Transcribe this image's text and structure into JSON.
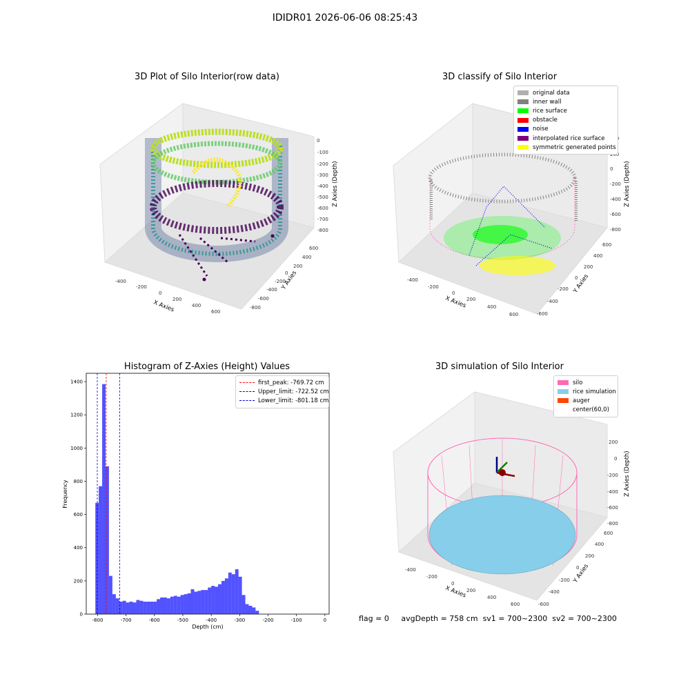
{
  "suptitle": "IDIDR01 2026-06-06 08:25:43",
  "panels": {
    "raw": {
      "title": "3D Plot of Silo Interior(row data)",
      "xlabel": "X Axies",
      "ylabel": "Y Axies",
      "zlabel": "Z Axies (Depth)",
      "xticks": [
        "-400",
        "-200",
        "0",
        "200",
        "400",
        "600"
      ],
      "yticks": [
        "600",
        "400",
        "200",
        "0",
        "-200",
        "-400",
        "-600",
        "-800"
      ],
      "zticks": [
        "0",
        "-100",
        "-200",
        "-300",
        "-400",
        "-500",
        "-600",
        "-700",
        "-800"
      ]
    },
    "classify": {
      "title": "3D classify of Silo Interior",
      "xlabel": "X Axies",
      "ylabel": "Y Axies",
      "zlabel": "Z Axies (Depth)",
      "xticks": [
        "-400",
        "-200",
        "0",
        "200",
        "400",
        "600"
      ],
      "yticks": [
        "600",
        "400",
        "200",
        "0",
        "-200",
        "-400",
        "-600"
      ],
      "zticks": [
        "400",
        "200",
        "0",
        "-200",
        "-400",
        "-600",
        "-800"
      ],
      "legend": [
        {
          "label": "original data",
          "color": "#b0b0b0"
        },
        {
          "label": "inner wall",
          "color": "#808080"
        },
        {
          "label": "rice surface",
          "color": "#00ff00"
        },
        {
          "label": "obstacle",
          "color": "#ff0000"
        },
        {
          "label": "noise",
          "color": "#0000ff"
        },
        {
          "label": "interpolated rice surface",
          "color": "#800080"
        },
        {
          "label": "symmetric generated points",
          "color": "#ffff00"
        }
      ]
    },
    "histogram": {
      "title": "Histogram of Z-Axies (Height) Values",
      "xlabel": "Depth (cm)",
      "ylabel": "Frequency",
      "xticks": [
        "-800",
        "-700",
        "-600",
        "-500",
        "-400",
        "-300",
        "-200",
        "-100",
        "0"
      ],
      "yticks": [
        "0",
        "200",
        "400",
        "600",
        "800",
        "1000",
        "1200",
        "1400"
      ],
      "legend": [
        {
          "label": "first_peak: -769.72 cm",
          "color": "#ff0000"
        },
        {
          "label": "Upper_limit: -722.52 cm",
          "color": "#0000cc"
        },
        {
          "label": "Lower_limit: -801.18 cm",
          "color": "#0000cc"
        }
      ]
    },
    "simulation": {
      "title": "3D simulation of Silo Interior",
      "xlabel": "X Axies",
      "ylabel": "Y Axies",
      "zlabel": "Z Axies (Depth)",
      "xticks": [
        "-400",
        "-200",
        "0",
        "200",
        "400",
        "600"
      ],
      "yticks": [
        "600",
        "400",
        "200",
        "0",
        "-200",
        "-400",
        "-600"
      ],
      "zticks": [
        "200",
        "0",
        "-200",
        "-400",
        "-600",
        "-800"
      ],
      "legend": [
        {
          "label": "silo",
          "color": "#ff69b4"
        },
        {
          "label": "rice simulation",
          "color": "#87ceeb"
        },
        {
          "label": "auger",
          "color": "#ff4500"
        },
        {
          "label": "center(60,0)",
          "color": "#ffffff"
        }
      ]
    }
  },
  "footer": {
    "flag": "flag = 0",
    "avg_depth": "avgDepth = 758 cm",
    "sv1": "sv1 = 700~2300",
    "sv2": "sv2 = 700~2300"
  },
  "chart_data": [
    {
      "type": "scatter",
      "title": "3D Plot of Silo Interior(row data)",
      "xlabel": "X Axies",
      "ylabel": "Y Axies",
      "zlabel": "Z Axies (Depth)",
      "xlim": [
        -550,
        700
      ],
      "ylim": [
        -900,
        700
      ],
      "zlim": [
        -850,
        0
      ],
      "colormap": "viridis"
    },
    {
      "type": "scatter",
      "title": "3D classify of Silo Interior",
      "xlabel": "X Axies",
      "ylabel": "Y Axies",
      "zlabel": "Z Axies (Depth)",
      "xlim": [
        -550,
        700
      ],
      "ylim": [
        -650,
        650
      ],
      "zlim": [
        -850,
        400
      ],
      "series": [
        {
          "name": "original data"
        },
        {
          "name": "inner wall"
        },
        {
          "name": "rice surface"
        },
        {
          "name": "obstacle"
        },
        {
          "name": "noise"
        },
        {
          "name": "interpolated rice surface"
        },
        {
          "name": "symmetric generated points"
        }
      ]
    },
    {
      "type": "bar",
      "title": "Histogram of Z-Axies (Height) Values",
      "xlabel": "Depth (cm)",
      "ylabel": "Frequency",
      "xlim": [
        -840,
        15
      ],
      "ylim": [
        0,
        1450
      ],
      "bin_width": 12,
      "bin_start": -808,
      "values": [
        670,
        770,
        1385,
        890,
        230,
        120,
        95,
        75,
        80,
        70,
        75,
        70,
        85,
        80,
        75,
        75,
        75,
        75,
        90,
        100,
        100,
        95,
        105,
        110,
        105,
        115,
        120,
        125,
        150,
        135,
        140,
        145,
        145,
        160,
        170,
        165,
        180,
        200,
        215,
        250,
        240,
        270,
        225,
        115,
        60,
        50,
        40,
        20
      ],
      "bar_color": "#0000ff",
      "lines": [
        {
          "label": "first_peak: -769.72 cm",
          "x": -769.72,
          "color": "#ff0000"
        },
        {
          "label": "Upper_limit: -722.52 cm",
          "x": -722.52,
          "color": "#0000cc"
        },
        {
          "label": "Lower_limit: -801.18 cm",
          "x": -801.18,
          "color": "#0000cc"
        }
      ],
      "grid": false,
      "legend": "top-right"
    },
    {
      "type": "scatter",
      "title": "3D simulation of Silo Interior",
      "xlabel": "X Axies",
      "ylabel": "Y Axies",
      "zlabel": "Z Axies (Depth)",
      "xlim": [
        -550,
        700
      ],
      "ylim": [
        -650,
        650
      ],
      "zlim": [
        -850,
        300
      ],
      "series": [
        {
          "name": "silo"
        },
        {
          "name": "rice simulation"
        },
        {
          "name": "auger"
        },
        {
          "name": "center(60,0)"
        }
      ]
    }
  ]
}
